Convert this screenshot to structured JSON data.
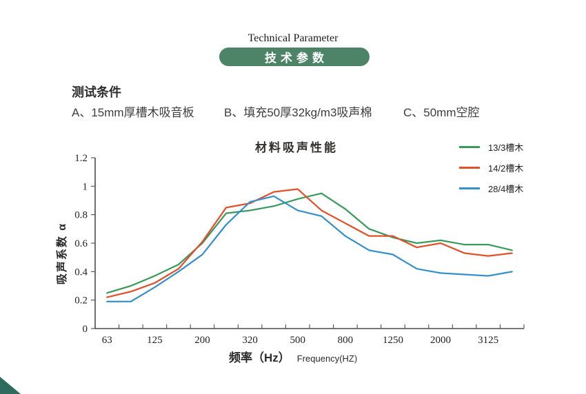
{
  "header": {
    "title_en": "Technical Parameter",
    "badge_label": "技术参数",
    "badge_color": "#4d8468"
  },
  "conditions": {
    "heading": "测试条件",
    "items": [
      "A、15mm厚槽木吸音板",
      "B、填充50厚32kg/m3吸声棉",
      "C、50mm空腔"
    ]
  },
  "chart_data": {
    "type": "line",
    "title": "材料吸声性能",
    "ylabel": "吸声系数 α",
    "xlabel_zh": "频率（Hz）",
    "xlabel_en": "Frequency(HZ)",
    "grid": false,
    "legend_position": "top-right",
    "ylim": [
      0,
      1.2
    ],
    "yticks": [
      0,
      0.2,
      0.4,
      0.6,
      0.8,
      1,
      1.2
    ],
    "x_tick_labels": [
      "63",
      "125",
      "200",
      "320",
      "500",
      "800",
      "1250",
      "2000",
      "3125"
    ],
    "categories": [
      "63",
      "",
      "125",
      "",
      "200",
      "",
      "320",
      "",
      "500",
      "",
      "800",
      "",
      "1250",
      "",
      "2000",
      "",
      "3125",
      ""
    ],
    "series": [
      {
        "name": "13/3槽木",
        "color": "#3a9a5c",
        "values": [
          0.25,
          0.3,
          0.37,
          0.45,
          0.6,
          0.81,
          0.83,
          0.86,
          0.91,
          0.95,
          0.84,
          0.7,
          0.64,
          0.6,
          0.62,
          0.59,
          0.59,
          0.55
        ]
      },
      {
        "name": "14/2槽木",
        "color": "#e2502a",
        "values": [
          0.22,
          0.26,
          0.32,
          0.42,
          0.61,
          0.85,
          0.88,
          0.96,
          0.98,
          0.83,
          0.74,
          0.65,
          0.65,
          0.57,
          0.6,
          0.53,
          0.51,
          0.53
        ]
      },
      {
        "name": "28/4槽木",
        "color": "#3590cd",
        "values": [
          0.19,
          0.19,
          0.29,
          0.4,
          0.52,
          0.73,
          0.89,
          0.93,
          0.83,
          0.79,
          0.65,
          0.55,
          0.52,
          0.42,
          0.39,
          0.38,
          0.37,
          0.4
        ]
      }
    ]
  },
  "decoration": {
    "corner_color": "#2f6b5f"
  }
}
